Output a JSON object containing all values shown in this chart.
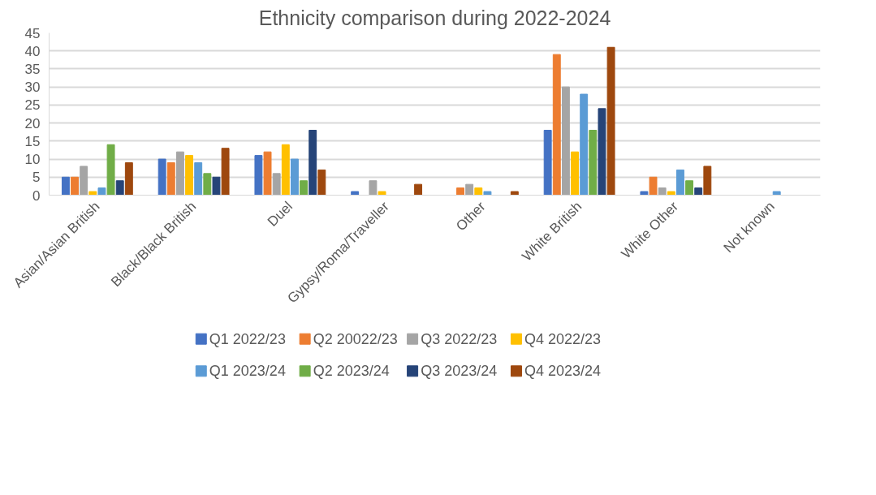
{
  "chart_data": {
    "type": "bar",
    "title": "Ethnicity comparison during 2022-2024",
    "categories": [
      "Asian/Asian British",
      "Black/Black British",
      "Duel",
      "Gypsy/Roma/Traveller",
      "Other",
      "White British",
      "White Other",
      "Not known"
    ],
    "series": [
      {
        "name": "Q1 2022/23",
        "color": "#4472c4",
        "values": [
          5,
          10,
          11,
          1,
          0,
          18,
          1,
          0
        ]
      },
      {
        "name": "Q2 20022/23",
        "color": "#ed7d31",
        "values": [
          5,
          9,
          12,
          0,
          2,
          39,
          5,
          0
        ]
      },
      {
        "name": "Q3  2022/23",
        "color": "#a5a5a5",
        "values": [
          8,
          12,
          6,
          4,
          3,
          30,
          2,
          0
        ]
      },
      {
        "name": "Q4 2022/23",
        "color": "#ffc000",
        "values": [
          1,
          11,
          14,
          1,
          2,
          12,
          1,
          0
        ]
      },
      {
        "name": "Q1 2023/24",
        "color": "#5b9bd5",
        "values": [
          2,
          9,
          10,
          0,
          1,
          28,
          7,
          1
        ]
      },
      {
        "name": "Q2 2023/24",
        "color": "#70ad47",
        "values": [
          14,
          6,
          4,
          0,
          0,
          18,
          4,
          0
        ]
      },
      {
        "name": "Q3 2023/24",
        "color": "#264478",
        "values": [
          4,
          5,
          18,
          0,
          0,
          24,
          2,
          0
        ]
      },
      {
        "name": "Q4 2023/24",
        "color": "#9e480e",
        "values": [
          9,
          13,
          7,
          3,
          1,
          41,
          8,
          0
        ]
      }
    ],
    "ylim": [
      0,
      45
    ],
    "yticks": [
      0,
      5,
      10,
      15,
      20,
      25,
      30,
      35,
      40,
      45
    ],
    "grid": "y",
    "legend": "bottom"
  }
}
